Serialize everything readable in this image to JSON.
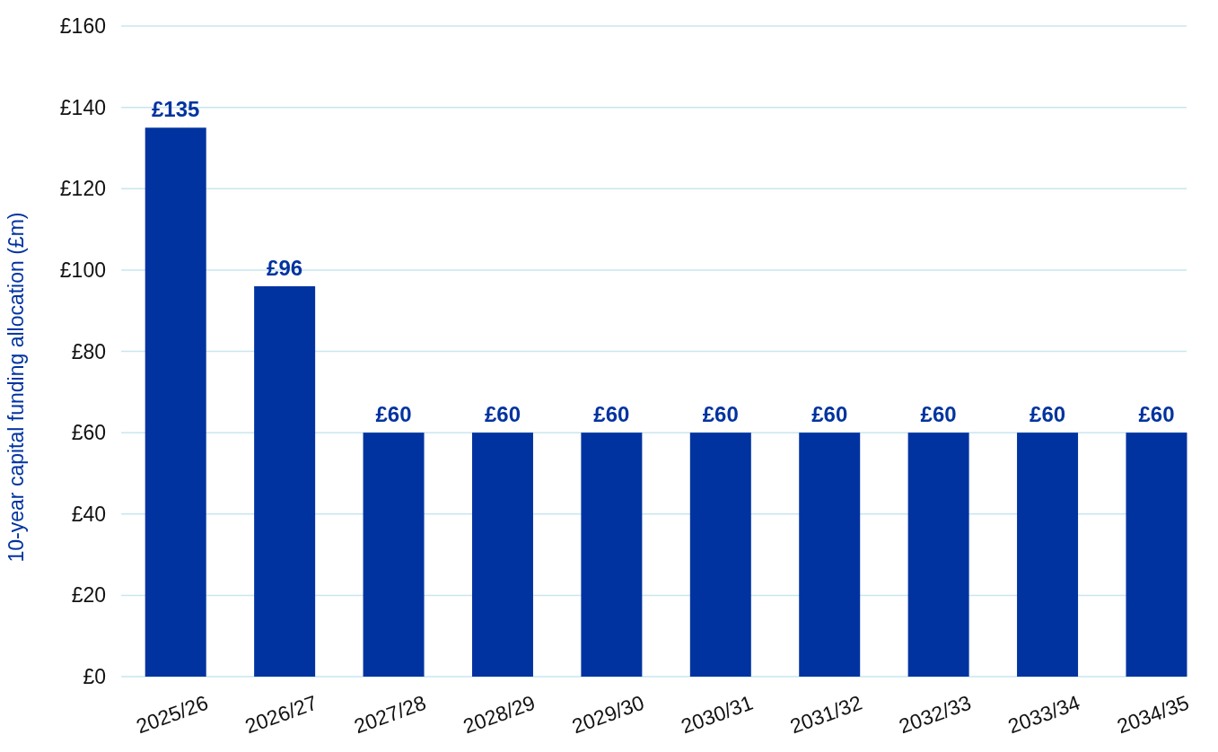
{
  "chart_data": {
    "type": "bar",
    "ylabel": "10-year capital funding allocation (£m)",
    "categories": [
      "2025/26",
      "2026/27",
      "2027/28",
      "2028/29",
      "2029/30",
      "2030/31",
      "2031/32",
      "2032/33",
      "2033/34",
      "2034/35"
    ],
    "values": [
      135,
      96,
      60,
      60,
      60,
      60,
      60,
      60,
      60,
      60
    ],
    "value_labels": [
      "£135",
      "£96",
      "£60",
      "£60",
      "£60",
      "£60",
      "£60",
      "£60",
      "£60",
      "£60"
    ],
    "color": "#0033a0",
    "ylim": [
      0,
      160
    ],
    "yticks": [
      {
        "value": 0,
        "label": "£0"
      },
      {
        "value": 20,
        "label": "£20"
      },
      {
        "value": 40,
        "label": "£40"
      },
      {
        "value": 60,
        "label": "£60"
      },
      {
        "value": 80,
        "label": "£80"
      },
      {
        "value": 100,
        "label": "£100"
      },
      {
        "value": 120,
        "label": "£120"
      },
      {
        "value": 140,
        "label": "£140"
      },
      {
        "value": 160,
        "label": "£160"
      }
    ],
    "grid": "y"
  }
}
